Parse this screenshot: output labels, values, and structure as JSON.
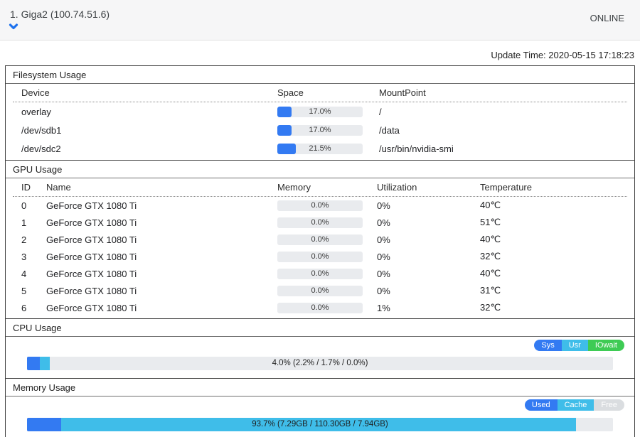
{
  "header": {
    "title": "1. Giga2 (100.74.51.6)",
    "status": "ONLINE"
  },
  "update_time": "Update Time: 2020-05-15 17:18:23",
  "colors": {
    "blue": "#337af2",
    "cyan": "#3fbde9",
    "green": "#3ecb54",
    "free_gray": "#dadde0",
    "bar_bg": "#e9ebee"
  },
  "filesystem": {
    "title": "Filesystem Usage",
    "columns": [
      "Device",
      "Space",
      "MountPoint"
    ],
    "rows": [
      {
        "device": "overlay",
        "space_pct": 17.0,
        "space_label": "17.0%",
        "mount_point": "/"
      },
      {
        "device": "/dev/sdb1",
        "space_pct": 17.0,
        "space_label": "17.0%",
        "mount_point": "/data"
      },
      {
        "device": "/dev/sdc2",
        "space_pct": 21.5,
        "space_label": "21.5%",
        "mount_point": "/usr/bin/nvidia-smi"
      }
    ]
  },
  "gpu": {
    "title": "GPU Usage",
    "columns": [
      "ID",
      "Name",
      "Memory",
      "Utilization",
      "Temperature"
    ],
    "rows": [
      {
        "id": "0",
        "name": "GeForce GTX 1080 Ti",
        "memory_pct": 0.0,
        "memory_label": "0.0%",
        "utilization": "0%",
        "temperature": "40℃"
      },
      {
        "id": "1",
        "name": "GeForce GTX 1080 Ti",
        "memory_pct": 0.0,
        "memory_label": "0.0%",
        "utilization": "0%",
        "temperature": "51℃"
      },
      {
        "id": "2",
        "name": "GeForce GTX 1080 Ti",
        "memory_pct": 0.0,
        "memory_label": "0.0%",
        "utilization": "0%",
        "temperature": "40℃"
      },
      {
        "id": "3",
        "name": "GeForce GTX 1080 Ti",
        "memory_pct": 0.0,
        "memory_label": "0.0%",
        "utilization": "0%",
        "temperature": "32℃"
      },
      {
        "id": "4",
        "name": "GeForce GTX 1080 Ti",
        "memory_pct": 0.0,
        "memory_label": "0.0%",
        "utilization": "0%",
        "temperature": "40℃"
      },
      {
        "id": "5",
        "name": "GeForce GTX 1080 Ti",
        "memory_pct": 0.0,
        "memory_label": "0.0%",
        "utilization": "0%",
        "temperature": "31℃"
      },
      {
        "id": "6",
        "name": "GeForce GTX 1080 Ti",
        "memory_pct": 0.0,
        "memory_label": "0.0%",
        "utilization": "1%",
        "temperature": "32℃"
      }
    ]
  },
  "cpu": {
    "title": "CPU Usage",
    "legend": [
      {
        "label": "Sys",
        "color": "blue"
      },
      {
        "label": "Usr",
        "color": "cyan"
      },
      {
        "label": "IOwait",
        "color": "green"
      }
    ],
    "bar": {
      "label": "4.0% (2.2% / 1.7% / 0.0%)",
      "segments": [
        {
          "name": "sys",
          "pct": 2.2,
          "color": "blue"
        },
        {
          "name": "usr",
          "pct": 1.7,
          "color": "cyan"
        },
        {
          "name": "iowait",
          "pct": 0.0,
          "color": "green"
        }
      ]
    }
  },
  "memory": {
    "title": "Memory Usage",
    "legend": [
      {
        "label": "Used",
        "color": "blue"
      },
      {
        "label": "Cache",
        "color": "cyan"
      },
      {
        "label": "Free",
        "color": "free_gray"
      }
    ],
    "bar": {
      "label": "93.7% (7.29GB / 110.30GB / 7.94GB)",
      "segments": [
        {
          "name": "used",
          "pct": 5.8,
          "color": "blue"
        },
        {
          "name": "cache",
          "pct": 87.9,
          "color": "cyan"
        }
      ]
    }
  }
}
